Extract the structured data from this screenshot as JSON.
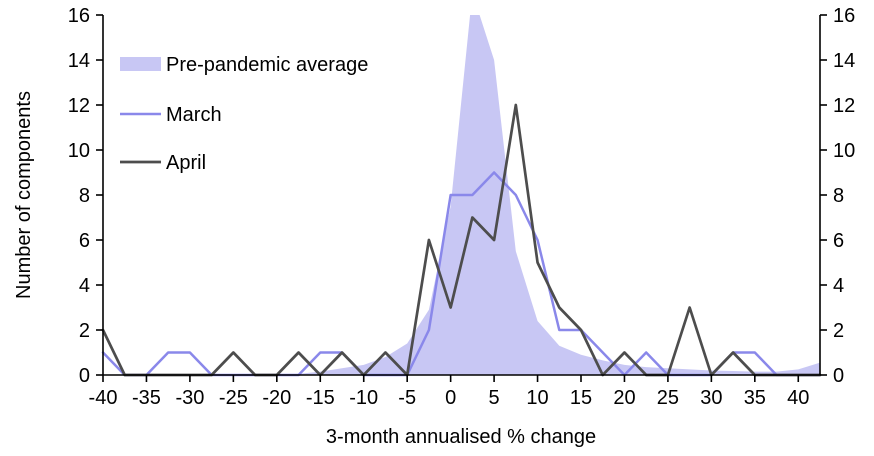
{
  "chart_data": {
    "type": "line",
    "title": "",
    "xlabel": "3-month annualised % change",
    "ylabel": "Number of components",
    "xlim": [
      -40,
      42.5
    ],
    "ylim": [
      0,
      16
    ],
    "x_ticks": [
      -40,
      -35,
      -30,
      -25,
      -20,
      -15,
      -10,
      -5,
      0,
      5,
      10,
      15,
      20,
      25,
      30,
      35,
      40
    ],
    "y_ticks": [
      0,
      2,
      4,
      6,
      8,
      10,
      12,
      14,
      16
    ],
    "grid": false,
    "legend_position": "top-left",
    "dual_y_axis": true,
    "x": [
      -40,
      -37.5,
      -35,
      -32.5,
      -30,
      -27.5,
      -25,
      -22.5,
      -20,
      -17.5,
      -15,
      -12.5,
      -10,
      -7.5,
      -5,
      -2.5,
      0,
      2.5,
      5,
      7.5,
      10,
      12.5,
      15,
      17.5,
      20,
      22.5,
      25,
      27.5,
      30,
      32.5,
      35,
      37.5,
      40,
      42.5
    ],
    "series": [
      {
        "name": "Pre-pandemic average",
        "style": "area",
        "color": "#c8c7f4",
        "note": "peak exceeds axis maximum and is clipped at 16",
        "values": [
          0,
          0,
          0,
          0,
          0,
          0,
          0,
          0,
          0,
          0.05,
          0.15,
          0.3,
          0.45,
          0.8,
          1.4,
          2.9,
          7.5,
          17,
          14,
          5.5,
          2.4,
          1.3,
          0.9,
          0.65,
          0.45,
          0.35,
          0.3,
          0.25,
          0.2,
          0.18,
          0.15,
          0.15,
          0.25,
          0.55
        ]
      },
      {
        "name": "March",
        "style": "line",
        "color": "#8a88ea",
        "values": [
          1,
          0,
          0,
          1,
          1,
          0,
          0,
          0,
          0,
          0,
          1,
          1,
          0,
          0,
          0,
          2,
          8,
          8,
          9,
          8,
          6,
          2,
          2,
          1,
          0,
          1,
          0,
          0,
          0,
          1,
          1,
          0,
          0,
          0
        ]
      },
      {
        "name": "April",
        "style": "line",
        "color": "#4d4d4d",
        "values": [
          2,
          0,
          0,
          0,
          0,
          0,
          1,
          0,
          0,
          1,
          0,
          1,
          0,
          1,
          0,
          6,
          3,
          7,
          6,
          12,
          5,
          3,
          2,
          0,
          1,
          0,
          0,
          3,
          0,
          1,
          0,
          0,
          0,
          0
        ]
      }
    ]
  }
}
